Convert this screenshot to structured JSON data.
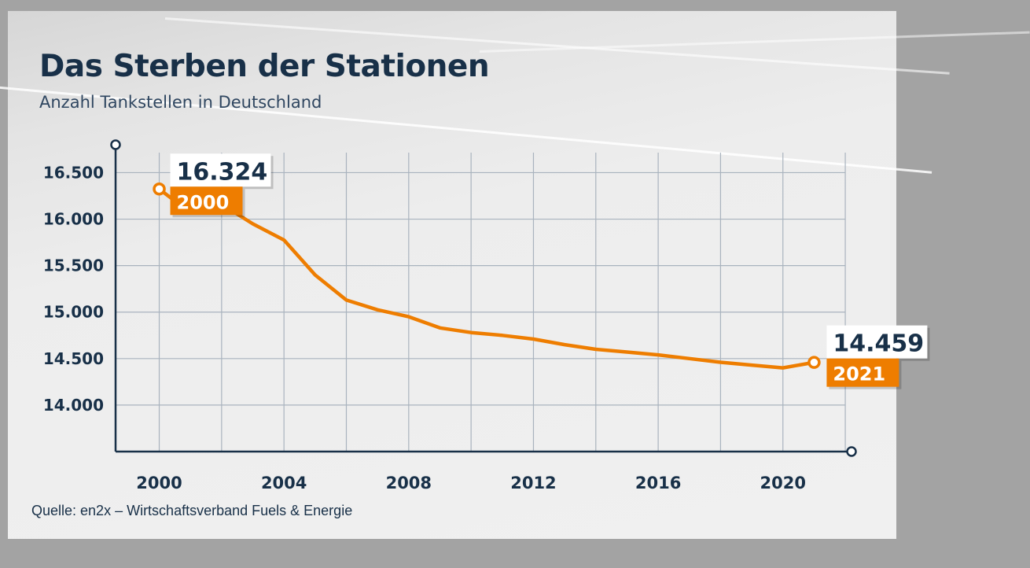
{
  "chart_data": {
    "type": "line",
    "title": "Das Sterben der Stationen",
    "subtitle": "Anzahl Tankstellen in Deutschland",
    "source": "Quelle: en2x – Wirtschaftsverband Fuels & Energie",
    "xlabel": "",
    "ylabel": "",
    "xlim": [
      1998.6,
      2022.2
    ],
    "ylim": [
      13500,
      16800
    ],
    "grid": true,
    "x_ticks": [
      2000,
      2004,
      2008,
      2012,
      2016,
      2020
    ],
    "x_tick_labels": [
      "2000",
      "2004",
      "2008",
      "2012",
      "2016",
      "2020"
    ],
    "y_ticks": [
      14000,
      14500,
      15000,
      15500,
      16000,
      16500
    ],
    "y_tick_labels": [
      "14.000",
      "14.500",
      "15.000",
      "15.500",
      "16.000",
      "16.500"
    ],
    "series": [
      {
        "color": "#ee7d00",
        "x": [
          2000,
          2001,
          2002,
          2003,
          2004,
          2005,
          2006,
          2007,
          2008,
          2009,
          2010,
          2011,
          2012,
          2013,
          2014,
          2015,
          2016,
          2017,
          2018,
          2019,
          2020,
          2021
        ],
        "y": [
          16324,
          16068,
          16160,
          15950,
          15775,
          15400,
          15130,
          15025,
          14950,
          14830,
          14780,
          14750,
          14710,
          14650,
          14600,
          14570,
          14540,
          14500,
          14460,
          14430,
          14400,
          14459
        ]
      }
    ],
    "annotations": [
      {
        "x": 2000,
        "y": 16324,
        "value_label": "16.324",
        "year_label": "2000"
      },
      {
        "x": 2021,
        "y": 14459,
        "value_label": "14.459",
        "year_label": "2021"
      }
    ]
  },
  "colors": {
    "accent": "#ee7d00",
    "text": "#183048",
    "grid": "#a9b3be"
  }
}
